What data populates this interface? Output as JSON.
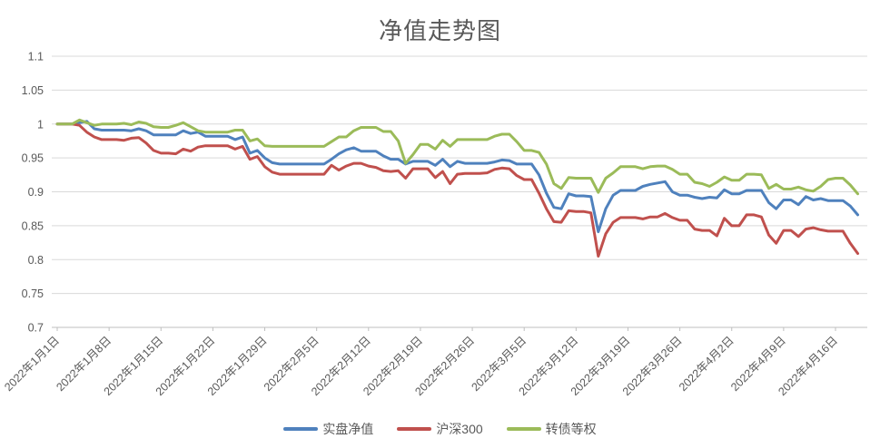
{
  "chart": {
    "title_label": "净值走势图",
    "legend_items": [
      {
        "label": "实盘净值",
        "color": "#4F81BD"
      },
      {
        "label": "沪深300",
        "color": "#C0504D"
      },
      {
        "label": "转债等权",
        "color": "#9BBB59"
      }
    ]
  },
  "chart_data": {
    "type": "line",
    "title": "净值走势图",
    "xlabel": "",
    "ylabel": "",
    "ylim": [
      0.7,
      1.1
    ],
    "grid": true,
    "legend_position": "bottom",
    "axis_text_color": "#595959",
    "gridline_color": "#D9D9D9",
    "axis_line_color": "#BFBFBF",
    "year": "2022",
    "x": [
      "01-01",
      "01-02",
      "01-03",
      "01-04",
      "01-05",
      "01-06",
      "01-07",
      "01-08",
      "01-09",
      "01-10",
      "01-11",
      "01-12",
      "01-13",
      "01-14",
      "01-15",
      "01-16",
      "01-17",
      "01-18",
      "01-19",
      "01-20",
      "01-21",
      "01-22",
      "01-23",
      "01-24",
      "01-25",
      "01-26",
      "01-27",
      "01-28",
      "01-29",
      "01-30",
      "01-31",
      "02-01",
      "02-02",
      "02-03",
      "02-04",
      "02-05",
      "02-06",
      "02-07",
      "02-08",
      "02-09",
      "02-10",
      "02-11",
      "02-12",
      "02-13",
      "02-14",
      "02-15",
      "02-16",
      "02-17",
      "02-18",
      "02-19",
      "02-20",
      "02-21",
      "02-22",
      "02-23",
      "02-24",
      "02-25",
      "02-26",
      "02-27",
      "02-28",
      "03-01",
      "03-02",
      "03-03",
      "03-04",
      "03-05",
      "03-06",
      "03-07",
      "03-08",
      "03-09",
      "03-10",
      "03-11",
      "03-12",
      "03-13",
      "03-14",
      "03-15",
      "03-16",
      "03-17",
      "03-18",
      "03-19",
      "03-20",
      "03-21",
      "03-22",
      "03-23",
      "03-24",
      "03-25",
      "03-26",
      "03-27",
      "03-28",
      "03-29",
      "03-30",
      "03-31",
      "04-01",
      "04-02",
      "04-03",
      "04-04",
      "04-05",
      "04-06",
      "04-07",
      "04-08",
      "04-09",
      "04-10",
      "04-11",
      "04-12",
      "04-13",
      "04-14",
      "04-15",
      "04-16",
      "04-17",
      "04-18",
      "04-19"
    ],
    "x_tick_indices": [
      0,
      7,
      14,
      21,
      28,
      35,
      42,
      49,
      56,
      63,
      70,
      77,
      84,
      91,
      98,
      105
    ],
    "x_tick_labels": [
      "2022年1月1日",
      "2022年1月8日",
      "2022年1月15日",
      "2022年1月22日",
      "2022年1月29日",
      "2022年2月5日",
      "2022年2月12日",
      "2022年2月19日",
      "2022年2月26日",
      "2022年3月5日",
      "2022年3月12日",
      "2022年3月19日",
      "2022年3月26日",
      "2022年4月2日",
      "2022年4月9日",
      "2022年4月16日"
    ],
    "y_ticks": [
      0.7,
      0.75,
      0.8,
      0.85,
      0.9,
      0.95,
      1,
      1.05,
      1.1
    ],
    "y_tick_labels": [
      "0.7",
      "0.75",
      "0.8",
      "0.85",
      "0.9",
      "0.95",
      "1",
      "1.05",
      "1.1"
    ],
    "series": [
      {
        "name": "实盘净值",
        "color": "#4F81BD",
        "values": [
          1.0,
          1.0,
          1.0,
          1.002,
          1.004,
          0.993,
          0.991,
          0.991,
          0.991,
          0.991,
          0.99,
          0.993,
          0.99,
          0.984,
          0.984,
          0.984,
          0.984,
          0.99,
          0.986,
          0.988,
          0.982,
          0.982,
          0.982,
          0.982,
          0.977,
          0.981,
          0.957,
          0.961,
          0.95,
          0.943,
          0.941,
          0.941,
          0.941,
          0.941,
          0.941,
          0.941,
          0.941,
          0.948,
          0.956,
          0.962,
          0.965,
          0.96,
          0.96,
          0.96,
          0.953,
          0.948,
          0.948,
          0.941,
          0.945,
          0.945,
          0.945,
          0.939,
          0.948,
          0.937,
          0.945,
          0.942,
          0.942,
          0.942,
          0.942,
          0.944,
          0.947,
          0.946,
          0.941,
          0.941,
          0.941,
          0.925,
          0.898,
          0.877,
          0.875,
          0.897,
          0.894,
          0.894,
          0.893,
          0.841,
          0.875,
          0.895,
          0.902,
          0.902,
          0.902,
          0.908,
          0.911,
          0.913,
          0.915,
          0.9,
          0.895,
          0.895,
          0.892,
          0.89,
          0.892,
          0.891,
          0.903,
          0.897,
          0.897,
          0.902,
          0.902,
          0.902,
          0.884,
          0.875,
          0.888,
          0.888,
          0.881,
          0.893,
          0.888,
          0.89,
          0.887,
          0.887,
          0.887,
          0.879,
          0.866
        ]
      },
      {
        "name": "沪深300",
        "color": "#C0504D",
        "values": [
          1.0,
          1.0,
          1.0,
          0.998,
          0.988,
          0.981,
          0.977,
          0.977,
          0.977,
          0.976,
          0.979,
          0.98,
          0.972,
          0.961,
          0.957,
          0.957,
          0.956,
          0.963,
          0.96,
          0.966,
          0.968,
          0.968,
          0.968,
          0.968,
          0.963,
          0.967,
          0.948,
          0.952,
          0.937,
          0.929,
          0.926,
          0.926,
          0.926,
          0.926,
          0.926,
          0.926,
          0.926,
          0.939,
          0.932,
          0.938,
          0.942,
          0.942,
          0.938,
          0.936,
          0.931,
          0.93,
          0.931,
          0.92,
          0.934,
          0.934,
          0.934,
          0.921,
          0.93,
          0.912,
          0.926,
          0.927,
          0.927,
          0.927,
          0.928,
          0.933,
          0.935,
          0.934,
          0.924,
          0.918,
          0.918,
          0.898,
          0.875,
          0.856,
          0.855,
          0.872,
          0.871,
          0.871,
          0.869,
          0.805,
          0.838,
          0.855,
          0.862,
          0.862,
          0.862,
          0.86,
          0.863,
          0.863,
          0.868,
          0.862,
          0.858,
          0.858,
          0.845,
          0.843,
          0.843,
          0.835,
          0.861,
          0.85,
          0.85,
          0.866,
          0.866,
          0.863,
          0.836,
          0.824,
          0.843,
          0.843,
          0.834,
          0.845,
          0.847,
          0.844,
          0.842,
          0.842,
          0.842,
          0.824,
          0.809
        ]
      },
      {
        "name": "转债等权",
        "color": "#9BBB59",
        "values": [
          1.0,
          1.0,
          1.0,
          1.006,
          1.002,
          0.998,
          1.0,
          1.0,
          1.0,
          1.001,
          0.999,
          1.003,
          1.001,
          0.996,
          0.995,
          0.995,
          0.998,
          1.002,
          0.996,
          0.99,
          0.988,
          0.988,
          0.988,
          0.988,
          0.991,
          0.991,
          0.975,
          0.978,
          0.968,
          0.967,
          0.967,
          0.967,
          0.967,
          0.967,
          0.967,
          0.967,
          0.967,
          0.974,
          0.981,
          0.981,
          0.99,
          0.995,
          0.995,
          0.995,
          0.989,
          0.989,
          0.975,
          0.942,
          0.955,
          0.97,
          0.97,
          0.963,
          0.976,
          0.967,
          0.977,
          0.977,
          0.977,
          0.977,
          0.977,
          0.982,
          0.985,
          0.985,
          0.974,
          0.961,
          0.961,
          0.958,
          0.941,
          0.912,
          0.905,
          0.921,
          0.92,
          0.92,
          0.92,
          0.899,
          0.92,
          0.928,
          0.937,
          0.937,
          0.937,
          0.934,
          0.937,
          0.938,
          0.938,
          0.933,
          0.926,
          0.926,
          0.914,
          0.912,
          0.908,
          0.914,
          0.922,
          0.917,
          0.917,
          0.926,
          0.926,
          0.925,
          0.905,
          0.911,
          0.904,
          0.904,
          0.907,
          0.903,
          0.901,
          0.908,
          0.918,
          0.92,
          0.92,
          0.91,
          0.897
        ]
      }
    ]
  }
}
